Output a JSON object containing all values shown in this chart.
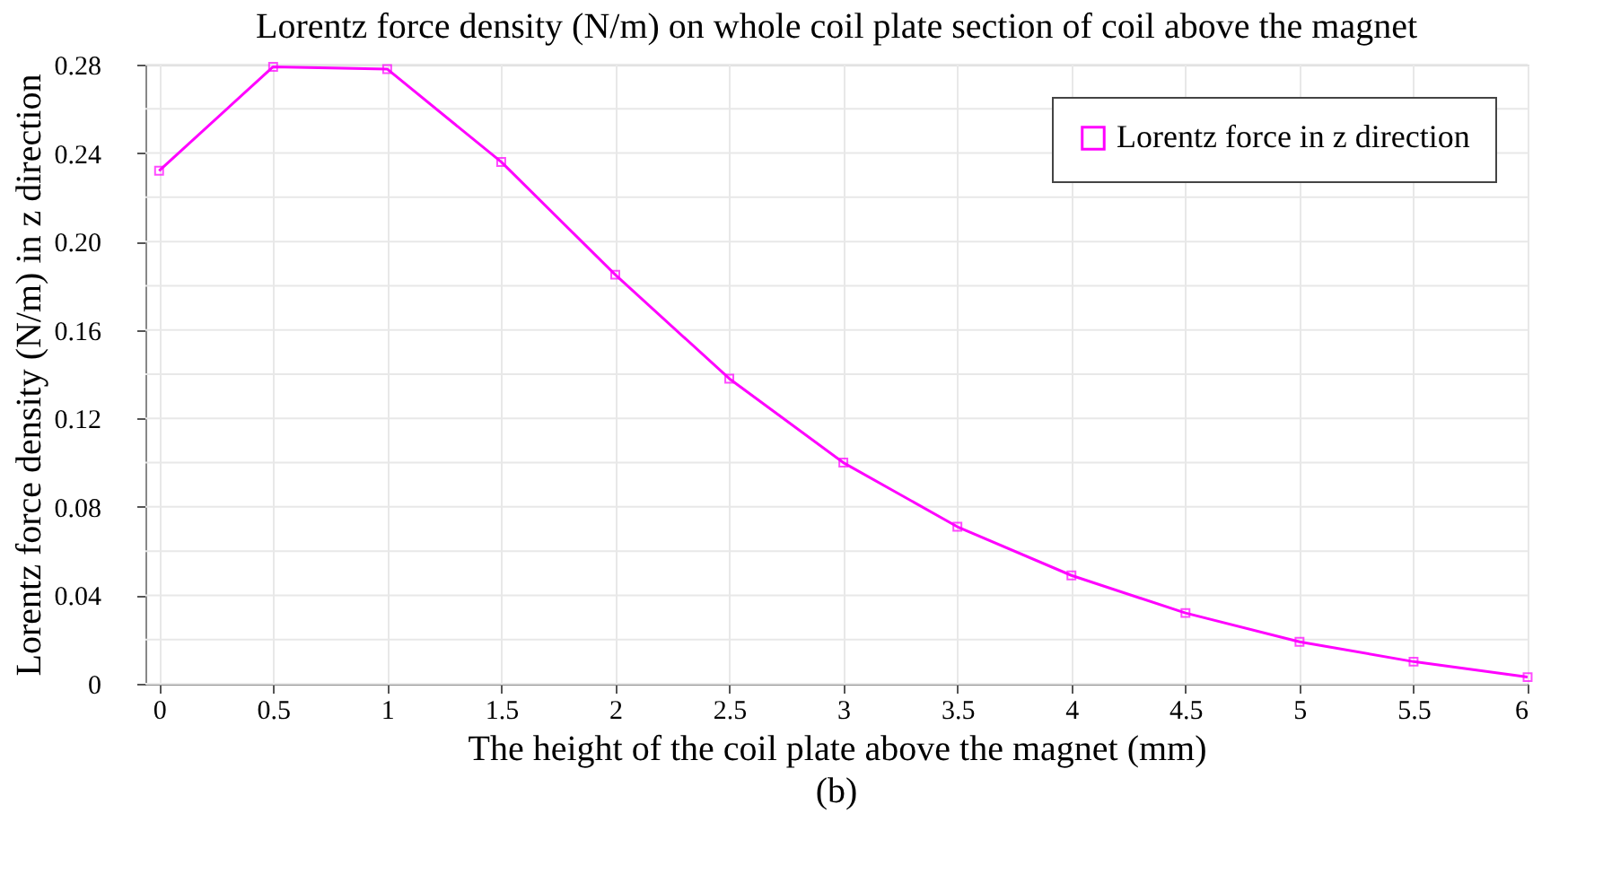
{
  "chart_data": {
    "type": "line",
    "title": "Lorentz force density (N/m) on whole coil plate section of coil above the magnet",
    "xlabel": "The height of the coil plate above the magnet (mm)",
    "ylabel": "Lorentz force density (N/m) in z direction",
    "annotations": [
      "(b)"
    ],
    "x": [
      0,
      0.5,
      1,
      1.5,
      2,
      2.5,
      3,
      3.5,
      4,
      4.5,
      5,
      5.5,
      6
    ],
    "series": [
      {
        "name": "Lorentz force in z direction",
        "color": "#ff00ff",
        "values": [
          0.232,
          0.279,
          0.278,
          0.236,
          0.185,
          0.138,
          0.1,
          0.071,
          0.049,
          0.032,
          0.019,
          0.01,
          0.003
        ]
      }
    ],
    "xlim": [
      -0.06,
      6
    ],
    "xticks": [
      0,
      0.5,
      1,
      1.5,
      2,
      2.5,
      3,
      3.5,
      4,
      4.5,
      5,
      5.5,
      6
    ],
    "ylim": [
      0,
      0.28
    ],
    "yticks": [
      {
        "value": 0,
        "label": "0"
      },
      {
        "value": 0.02,
        "label": null
      },
      {
        "value": 0.04,
        "label": "0.04"
      },
      {
        "value": 0.06,
        "label": null
      },
      {
        "value": 0.08,
        "label": "0.08"
      },
      {
        "value": 0.1,
        "label": null
      },
      {
        "value": 0.12,
        "label": "0.12"
      },
      {
        "value": 0.14,
        "label": null
      },
      {
        "value": 0.16,
        "label": "0.16"
      },
      {
        "value": 0.18,
        "label": null
      },
      {
        "value": 0.2,
        "label": "0.20"
      },
      {
        "value": 0.22,
        "label": null
      },
      {
        "value": 0.24,
        "label": "0.24"
      },
      {
        "value": 0.26,
        "label": null
      },
      {
        "value": 0.28,
        "label": "0.28"
      }
    ],
    "grid": true,
    "legend": "top right",
    "marker": "square",
    "line_style": "solid"
  }
}
